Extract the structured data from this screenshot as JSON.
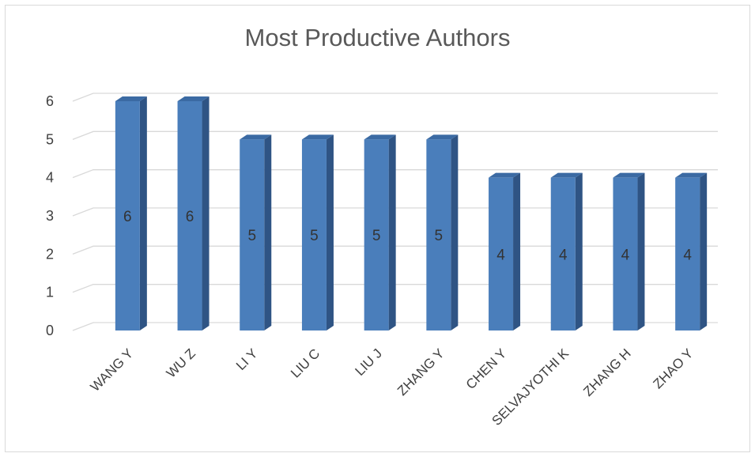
{
  "chart_data": {
    "type": "bar",
    "title": "Most Productive Authors",
    "xlabel": "",
    "ylabel": "",
    "categories": [
      "WANG Y",
      "WU Z",
      "LI Y",
      "LIU C",
      "LIU J",
      "ZHANG Y",
      "CHEN Y",
      "SELVAJYOTHI K",
      "ZHANG H",
      "ZHAO Y"
    ],
    "values": [
      6,
      6,
      5,
      5,
      5,
      5,
      4,
      4,
      4,
      4
    ],
    "ylim": [
      0,
      6
    ],
    "yticks": [
      "0",
      "1",
      "2",
      "3",
      "4",
      "5",
      "6"
    ],
    "grid": true,
    "legend": "none",
    "bar_color": "#4a7ebb",
    "bar_side_color": "#2f5484",
    "bar_top_color": "#3b6aa3"
  }
}
